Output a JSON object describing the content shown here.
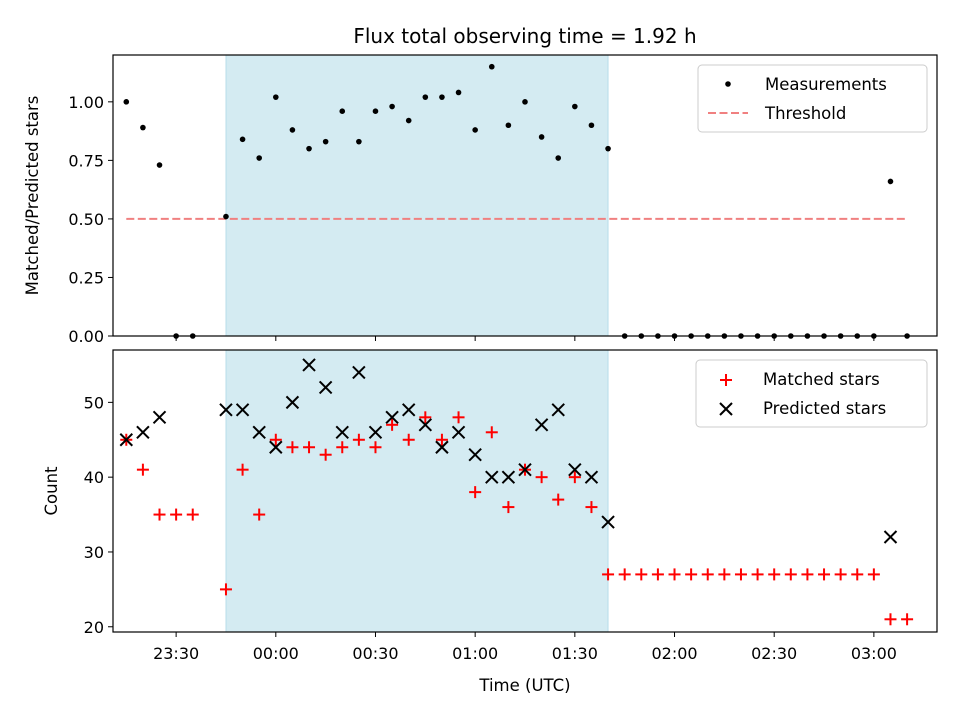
{
  "chart_data": [
    {
      "type": "scatter",
      "title": "Flux total observing time = 1.92 h",
      "ylabel": "Matched/Predicted stars",
      "xlabel": "",
      "ylim": [
        0,
        1.2
      ],
      "yticks": [
        0.0,
        0.25,
        0.5,
        0.75,
        1.0
      ],
      "ytick_labels": [
        "0.00",
        "0.25",
        "0.50",
        "0.75",
        "1.00"
      ],
      "xlim": [
        "23:11",
        "03:19"
      ],
      "shaded_span": [
        "23:45",
        "01:40"
      ],
      "shaded_color": "#add8e6",
      "legend_position": "upper right",
      "series": [
        {
          "name": "Measurements",
          "marker": "dot",
          "color": "#000000",
          "x": [
            "23:15",
            "23:20",
            "23:25",
            "23:30",
            "23:35",
            "23:45",
            "23:50",
            "23:55",
            "00:00",
            "00:05",
            "00:10",
            "00:15",
            "00:20",
            "00:25",
            "00:30",
            "00:35",
            "00:40",
            "00:45",
            "00:50",
            "00:55",
            "01:00",
            "01:05",
            "01:10",
            "01:15",
            "01:20",
            "01:25",
            "01:30",
            "01:35",
            "01:40",
            "01:45",
            "01:50",
            "01:55",
            "02:00",
            "02:05",
            "02:10",
            "02:15",
            "02:20",
            "02:25",
            "02:30",
            "02:35",
            "02:40",
            "02:45",
            "02:50",
            "02:55",
            "03:00",
            "03:05",
            "03:10"
          ],
          "y": [
            1.0,
            0.89,
            0.73,
            0.0,
            0.0,
            0.51,
            0.84,
            0.76,
            1.02,
            0.88,
            0.8,
            0.83,
            0.96,
            0.83,
            0.96,
            0.98,
            0.92,
            1.02,
            1.02,
            1.04,
            0.88,
            1.15,
            0.9,
            1.0,
            0.85,
            0.76,
            0.98,
            0.9,
            0.8,
            0.0,
            0.0,
            0.0,
            0.0,
            0.0,
            0.0,
            0.0,
            0.0,
            0.0,
            0.0,
            0.0,
            0.0,
            0.0,
            0.0,
            0.0,
            0.0,
            0.66,
            0.0
          ]
        },
        {
          "name": "Threshold",
          "style": "dashed",
          "color": "#f08080",
          "x": [
            "23:15",
            "03:10"
          ],
          "y": [
            0.5,
            0.5
          ]
        }
      ]
    },
    {
      "type": "scatter",
      "xlabel": "Time (UTC)",
      "ylabel": "Count",
      "ylim": [
        19.3,
        57
      ],
      "yticks": [
        20,
        30,
        40,
        50
      ],
      "ytick_labels": [
        "20",
        "30",
        "40",
        "50"
      ],
      "xlim": [
        "23:11",
        "03:19"
      ],
      "xticks": [
        "23:30",
        "00:00",
        "00:30",
        "01:00",
        "01:30",
        "02:00",
        "02:30",
        "03:00"
      ],
      "xtick_labels": [
        "23:30",
        "00:00",
        "00:30",
        "01:00",
        "01:30",
        "02:00",
        "02:30",
        "03:00"
      ],
      "shaded_span": [
        "23:45",
        "01:40"
      ],
      "shaded_color": "#add8e6",
      "legend_position": "upper right",
      "series": [
        {
          "name": "Matched stars",
          "marker": "plus",
          "color": "#ff0000",
          "x": [
            "23:15",
            "23:20",
            "23:25",
            "23:30",
            "23:35",
            "23:45",
            "23:50",
            "23:55",
            "00:00",
            "00:05",
            "00:10",
            "00:15",
            "00:20",
            "00:25",
            "00:30",
            "00:35",
            "00:40",
            "00:45",
            "00:50",
            "00:55",
            "01:00",
            "01:05",
            "01:10",
            "01:15",
            "01:20",
            "01:25",
            "01:30",
            "01:35",
            "01:40",
            "01:45",
            "01:50",
            "01:55",
            "02:00",
            "02:05",
            "02:10",
            "02:15",
            "02:20",
            "02:25",
            "02:30",
            "02:35",
            "02:40",
            "02:45",
            "02:50",
            "02:55",
            "03:00",
            "03:05",
            "03:10"
          ],
          "y": [
            45,
            41,
            35,
            35,
            35,
            25,
            41,
            35,
            45,
            44,
            44,
            43,
            44,
            45,
            44,
            47,
            45,
            48,
            45,
            48,
            38,
            46,
            36,
            41,
            40,
            37,
            40,
            36,
            27,
            27,
            27,
            27,
            27,
            27,
            27,
            27,
            27,
            27,
            27,
            27,
            27,
            27,
            27,
            27,
            27,
            21,
            21
          ]
        },
        {
          "name": "Predicted stars",
          "marker": "x",
          "color": "#000000",
          "x": [
            "23:15",
            "23:20",
            "23:25",
            "23:45",
            "23:50",
            "23:55",
            "00:00",
            "00:05",
            "00:10",
            "00:15",
            "00:20",
            "00:25",
            "00:30",
            "00:35",
            "00:40",
            "00:45",
            "00:50",
            "00:55",
            "01:00",
            "01:05",
            "01:10",
            "01:15",
            "01:20",
            "01:25",
            "01:30",
            "01:35",
            "01:40",
            "03:05"
          ],
          "y": [
            45,
            46,
            48,
            49,
            49,
            46,
            44,
            50,
            55,
            52,
            46,
            54,
            46,
            48,
            49,
            47,
            44,
            46,
            43,
            40,
            40,
            41,
            47,
            49,
            41,
            40,
            34,
            32
          ]
        }
      ]
    }
  ]
}
